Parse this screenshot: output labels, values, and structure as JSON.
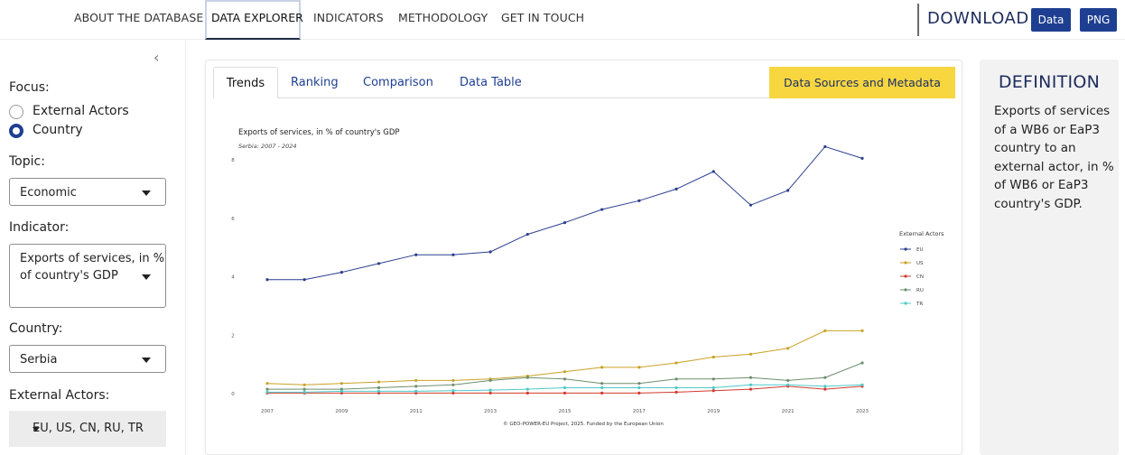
{
  "nav": {
    "items": [
      "ABOUT THE DATABASE",
      "DATA EXPLORER",
      "INDICATORS",
      "METHODOLOGY",
      "GET IN TOUCH"
    ],
    "active": "DATA EXPLORER",
    "download_label": "DOWNLOAD",
    "download_data": "Data",
    "download_png": "PNG"
  },
  "sidebar": {
    "collapse_icon": "chevron-left-icon",
    "focus_label": "Focus:",
    "focus_options": [
      "External Actors",
      "Country"
    ],
    "focus_selected": "Country",
    "topic_label": "Topic:",
    "topic_value": "Economic",
    "indicator_label": "Indicator:",
    "indicator_value_line1": "Exports of services, in %",
    "indicator_value_line2": "of country's GDP",
    "country_label": "Country:",
    "country_value": "Serbia",
    "actors_label": "External Actors:",
    "actors_value": "EU, US, CN, RU, TR"
  },
  "tabs": {
    "items": [
      "Trends",
      "Ranking",
      "Comparison",
      "Data Table"
    ],
    "active": "Trends",
    "sources_button": "Data Sources and Metadata"
  },
  "definition": {
    "title": "DEFINITION",
    "text": "Exports of services of a WB6 or EaP3 country to an external actor, in % of WB6 or EaP3 country's GDP."
  },
  "chart_data": {
    "type": "line",
    "title": "Exports of services, in % of country's GDP",
    "subtitle": "Serbia: 2007 - 2024",
    "x": [
      2007,
      2008,
      2009,
      2010,
      2011,
      2012,
      2013,
      2014,
      2015,
      2016,
      2017,
      2018,
      2019,
      2020,
      2021,
      2022,
      2023
    ],
    "x_ticks": [
      "2007",
      "2009",
      "2011",
      "2013",
      "2015",
      "2017",
      "2019",
      "2021",
      "2023"
    ],
    "y_ticks": [
      "0",
      "2",
      "4",
      "6",
      "8"
    ],
    "ylim": [
      0,
      8
    ],
    "legend_title": "External Actors",
    "legend_position": "right",
    "series": [
      {
        "name": "EU",
        "color": "#2b3f8f",
        "values": [
          3.9,
          3.9,
          4.15,
          4.45,
          4.75,
          4.75,
          4.85,
          5.45,
          5.85,
          6.3,
          6.6,
          7.0,
          7.6,
          6.45,
          6.95,
          8.45,
          8.05
        ]
      },
      {
        "name": "US",
        "color": "#c9a227",
        "values": [
          0.35,
          0.3,
          0.35,
          0.4,
          0.45,
          0.45,
          0.5,
          0.6,
          0.75,
          0.9,
          0.9,
          1.05,
          1.25,
          1.35,
          1.55,
          2.15,
          2.15
        ]
      },
      {
        "name": "CN",
        "color": "#d23a2f",
        "values": [
          0.02,
          0.02,
          0.02,
          0.02,
          0.02,
          0.02,
          0.02,
          0.02,
          0.02,
          0.02,
          0.02,
          0.05,
          0.1,
          0.15,
          0.25,
          0.15,
          0.25
        ]
      },
      {
        "name": "RU",
        "color": "#6e8f6e",
        "values": [
          0.15,
          0.15,
          0.15,
          0.2,
          0.25,
          0.3,
          0.45,
          0.55,
          0.5,
          0.35,
          0.35,
          0.5,
          0.5,
          0.55,
          0.45,
          0.55,
          1.05
        ]
      },
      {
        "name": "TR",
        "color": "#4fc9c9",
        "values": [
          0.05,
          0.05,
          0.08,
          0.08,
          0.08,
          0.1,
          0.12,
          0.15,
          0.2,
          0.2,
          0.2,
          0.2,
          0.2,
          0.3,
          0.3,
          0.25,
          0.3
        ]
      }
    ],
    "footer": "© GEO-POWER-EU Project, 2025. Funded by the European Union"
  }
}
